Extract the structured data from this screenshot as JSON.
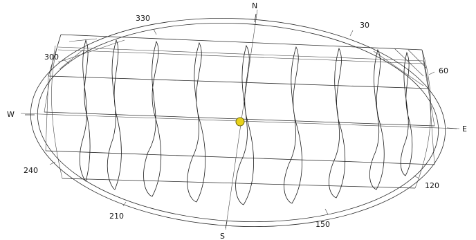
{
  "compass": {
    "north": "N",
    "south": "S",
    "east": "E",
    "west": "W"
  },
  "azimuth_labels": {
    "a330": "330",
    "a30": "30",
    "a300": "300",
    "a60": "60",
    "a240": "240",
    "a120": "120",
    "a210": "210",
    "a150": "150"
  },
  "sun_marker": {
    "color": "#e8d21a",
    "outline": "#6b6410"
  }
}
